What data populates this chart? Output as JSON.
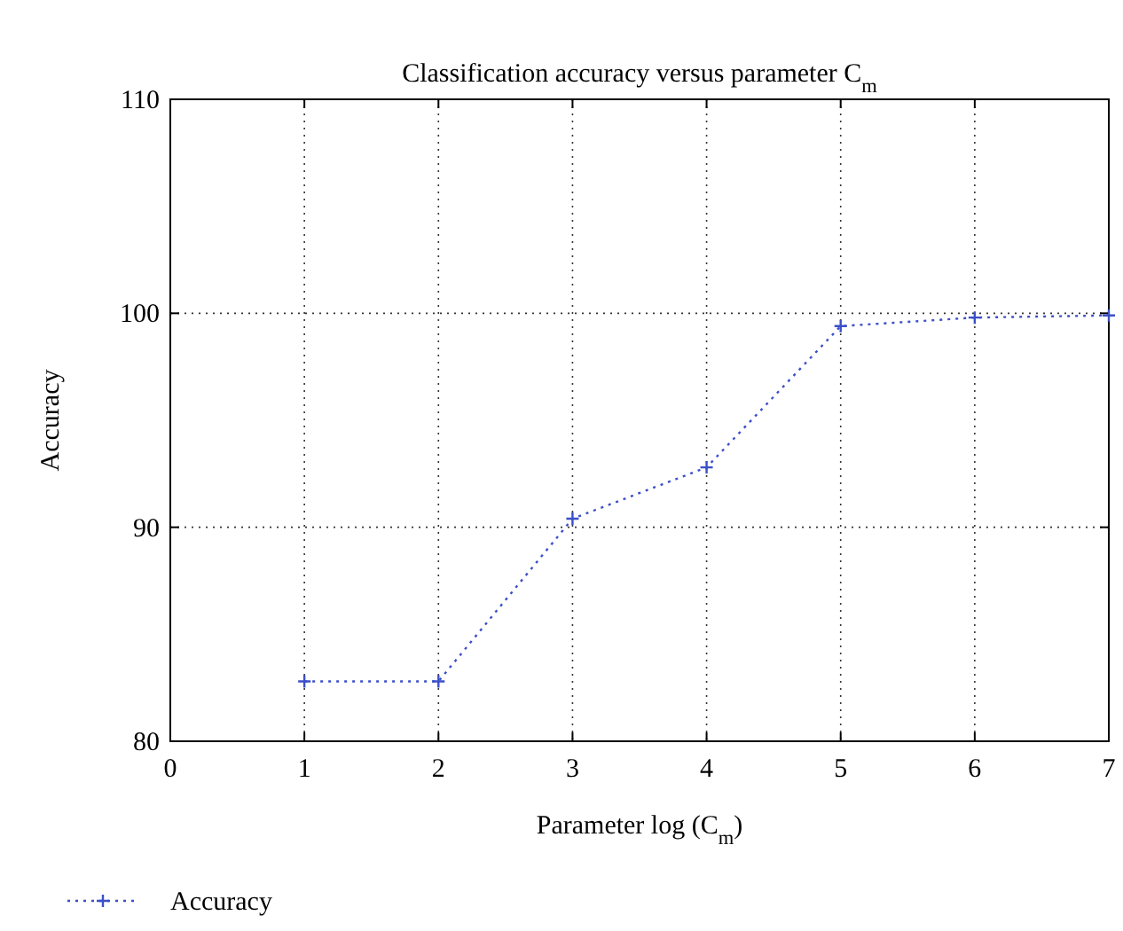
{
  "chart_data": {
    "type": "line",
    "title": "Classification accuracy versus parameter C$_{m}$",
    "xlabel": "Parameter log (C$_{m}$)",
    "ylabel": "Accuracy",
    "x": [
      1,
      2,
      3,
      4,
      5,
      6,
      7
    ],
    "series": [
      {
        "name": "Accuracy",
        "color": "#3b4fc8",
        "values": [
          82.8,
          82.8,
          90.4,
          92.8,
          99.4,
          99.8,
          99.9
        ]
      }
    ],
    "xlim": [
      0,
      7
    ],
    "xticks": [
      0,
      1,
      2,
      3,
      4,
      5,
      6,
      7
    ],
    "ylim": [
      80,
      110
    ],
    "yticks": [
      80,
      90,
      100,
      110
    ],
    "grid": true,
    "legend": "bottom left",
    "marker": "cross",
    "line_style": "dotted"
  }
}
